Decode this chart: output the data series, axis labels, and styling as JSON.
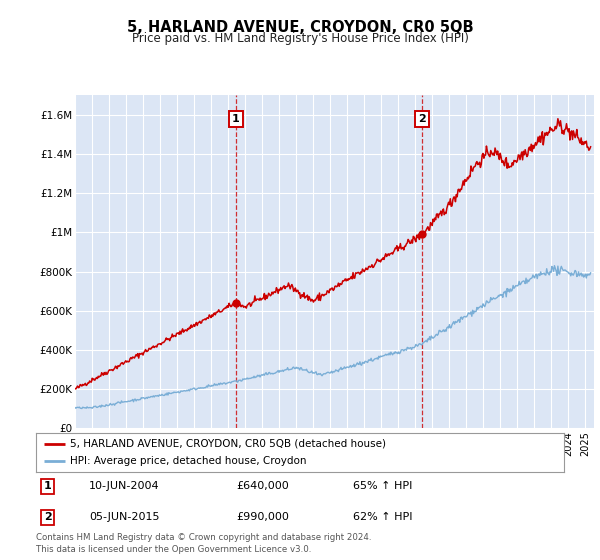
{
  "title": "5, HARLAND AVENUE, CROYDON, CR0 5QB",
  "subtitle": "Price paid vs. HM Land Registry's House Price Index (HPI)",
  "background_color": "#dce6f5",
  "plot_bg_color": "#dce6f5",
  "red_line_label": "5, HARLAND AVENUE, CROYDON, CR0 5QB (detached house)",
  "blue_line_label": "HPI: Average price, detached house, Croydon",
  "footer": "Contains HM Land Registry data © Crown copyright and database right 2024.\nThis data is licensed under the Open Government Licence v3.0.",
  "sale1_date": "10-JUN-2004",
  "sale1_price": "£640,000",
  "sale1_hpi": "65% ↑ HPI",
  "sale2_date": "05-JUN-2015",
  "sale2_price": "£990,000",
  "sale2_hpi": "62% ↑ HPI",
  "yticks": [
    0,
    200000,
    400000,
    600000,
    800000,
    1000000,
    1200000,
    1400000,
    1600000
  ],
  "ytick_labels": [
    "£0",
    "£200K",
    "£400K",
    "£600K",
    "£800K",
    "£1M",
    "£1.2M",
    "£1.4M",
    "£1.6M"
  ],
  "red_color": "#cc0000",
  "blue_color": "#7aaed6",
  "sale1_x": 2004.44,
  "sale1_y": 640000,
  "sale2_x": 2015.42,
  "sale2_y": 990000,
  "xmin": 1995,
  "xmax": 2025.5,
  "ymin": 0,
  "ymax": 1700000
}
